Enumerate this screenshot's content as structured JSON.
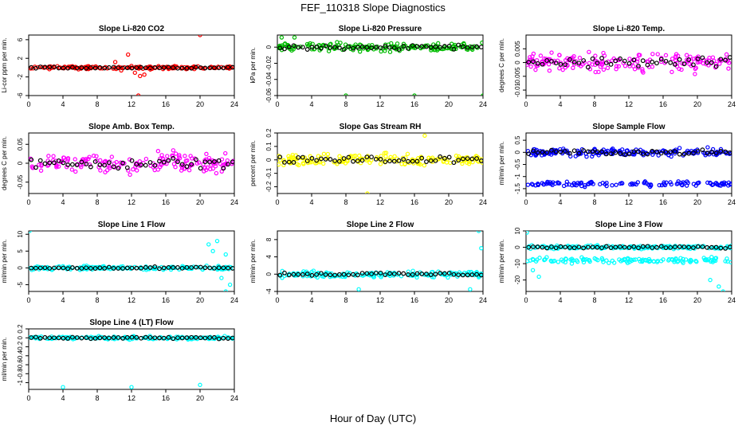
{
  "figure": {
    "title": "FEF_110318  Slope Diagnostics",
    "xlabel": "Hour of Day (UTC)"
  },
  "chart_data": [
    {
      "type": "scatter",
      "title": "Slope Li-820 CO2",
      "ylabel": "Li-cor ppm per min.",
      "xlim": [
        0,
        24
      ],
      "xticks": [
        0,
        4,
        8,
        12,
        16,
        20,
        24
      ],
      "ylim": [
        -6,
        7
      ],
      "yticks": [
        -6,
        -2,
        2,
        6
      ],
      "color": "#ff0000",
      "pattern": "band",
      "center": 0,
      "spread": 0.45,
      "outliers": [
        [
          10.1,
          1.2
        ],
        [
          10.8,
          -0.6
        ],
        [
          11.6,
          2.8
        ],
        [
          12.4,
          -1.1
        ],
        [
          13.0,
          -1.8
        ],
        [
          13.5,
          -1.5
        ],
        [
          14.2,
          -0.4
        ],
        [
          20.0,
          7.0
        ],
        [
          12.8,
          -6.0
        ]
      ]
    },
    {
      "type": "scatter",
      "title": "Slope Li-820 Pressure",
      "ylabel": "kPa per min.",
      "xlim": [
        0,
        24
      ],
      "xticks": [
        0,
        4,
        8,
        12,
        16,
        20,
        24
      ],
      "ylim": [
        -0.06,
        0.015
      ],
      "yticks": [
        -0.06,
        -0.04,
        -0.02,
        0
      ],
      "color": "#00bb00",
      "pattern": "band",
      "center": 0,
      "spread": 0.007,
      "outliers": [
        [
          8.0,
          -0.06
        ],
        [
          16.0,
          -0.06
        ],
        [
          24.0,
          -0.06
        ],
        [
          0.5,
          0.012
        ],
        [
          2.0,
          0.012
        ]
      ]
    },
    {
      "type": "scatter",
      "title": "Slope Li-820 Temp.",
      "ylabel": "degrees C per min.",
      "xlim": [
        0,
        24
      ],
      "xticks": [
        0,
        4,
        8,
        12,
        16,
        20,
        24
      ],
      "ylim": [
        -0.012,
        0.01
      ],
      "yticks": [
        -0.01,
        -0.005,
        0,
        0.005
      ],
      "color": "#ff00ff",
      "pattern": "band",
      "center": 0,
      "spread": 0.005,
      "outliers": []
    },
    {
      "type": "scatter",
      "title": "Slope Amb. Box Temp.",
      "ylabel": "degrees C per min.",
      "xlim": [
        0,
        24
      ],
      "xticks": [
        0,
        4,
        8,
        12,
        16,
        20,
        24
      ],
      "ylim": [
        -0.08,
        0.08
      ],
      "yticks": [
        -0.05,
        0,
        0.05
      ],
      "color": "#ff00ff",
      "pattern": "band",
      "center": 0,
      "spread": 0.04,
      "outliers": []
    },
    {
      "type": "scatter",
      "title": "Slope Gas Stream RH",
      "ylabel": "percent per min.",
      "xlim": [
        0,
        24
      ],
      "xticks": [
        0,
        4,
        8,
        12,
        16,
        20,
        24
      ],
      "ylim": [
        -0.25,
        0.2
      ],
      "yticks": [
        -0.2,
        -0.1,
        0,
        0.1,
        0.2
      ],
      "color": "#ffff00",
      "pattern": "band",
      "center": 0,
      "spread": 0.06,
      "outliers": [
        [
          10.5,
          -0.25
        ],
        [
          17.2,
          0.18
        ]
      ]
    },
    {
      "type": "scatter",
      "title": "Slope Sample Flow",
      "ylabel": "ml/min per min.",
      "xlim": [
        0,
        24
      ],
      "xticks": [
        0,
        4,
        8,
        12,
        16,
        20,
        24
      ],
      "ylim": [
        -1.7,
        0.8
      ],
      "yticks": [
        -1.5,
        -1,
        -0.5,
        0,
        0.5
      ],
      "color": "#0000ff",
      "pattern": "two-band",
      "center": 0,
      "spread": 0.25,
      "center2": -1.3,
      "spread2": 0.15,
      "outliers": []
    },
    {
      "type": "scatter",
      "title": "Slope Line 1 Flow",
      "ylabel": "ml/min per min.",
      "xlim": [
        0,
        24
      ],
      "xticks": [
        0,
        4,
        8,
        12,
        16,
        20,
        24
      ],
      "ylim": [
        -7,
        11
      ],
      "yticks": [
        -5,
        0,
        5,
        10
      ],
      "color": "#00ffff",
      "pattern": "band",
      "center": 0,
      "spread": 0.8,
      "outliers": [
        [
          0.1,
          11
        ],
        [
          21.0,
          7
        ],
        [
          22.0,
          8
        ],
        [
          21.5,
          5
        ],
        [
          23.0,
          4
        ],
        [
          22.5,
          -3
        ],
        [
          23.5,
          -5
        ],
        [
          23.0,
          -7
        ]
      ]
    },
    {
      "type": "scatter",
      "title": "Slope Line 2 Flow",
      "ylabel": "ml/min per min.",
      "xlim": [
        0,
        24
      ],
      "xticks": [
        0,
        4,
        8,
        12,
        16,
        20,
        24
      ],
      "ylim": [
        -4,
        10
      ],
      "yticks": [
        -4,
        0,
        4,
        8
      ],
      "color": "#00ffff",
      "pattern": "band",
      "center": 0,
      "spread": 1.0,
      "outliers": [
        [
          23.5,
          10
        ],
        [
          23.8,
          6
        ],
        [
          22.5,
          -3.5
        ],
        [
          9.5,
          -3.5
        ]
      ]
    },
    {
      "type": "scatter",
      "title": "Slope Line 3 Flow",
      "ylabel": "ml/min per min.",
      "xlim": [
        0,
        24
      ],
      "xticks": [
        0,
        4,
        8,
        12,
        16,
        20,
        24
      ],
      "ylim": [
        -27,
        10
      ],
      "yticks": [
        -20,
        -10,
        0,
        10
      ],
      "color": "#00ffff",
      "pattern": "two-band",
      "center": 0,
      "spread": 1.5,
      "center2": -8,
      "spread2": 2.5,
      "outliers": [
        [
          0.1,
          9
        ],
        [
          21.5,
          -20
        ],
        [
          22.5,
          -24
        ],
        [
          23.0,
          -27
        ],
        [
          0.8,
          -14
        ],
        [
          1.5,
          -18
        ]
      ]
    },
    {
      "type": "scatter",
      "title": "Slope Line 4 (LT) Flow",
      "ylabel": "ml/min per min.",
      "xlim": [
        0,
        24
      ],
      "xticks": [
        0,
        4,
        8,
        12,
        16,
        20,
        24
      ],
      "ylim": [
        -1.15,
        0.2
      ],
      "yticks": [
        -1,
        -0.8,
        -0.6,
        -0.4,
        -0.2,
        0,
        0.2
      ],
      "color": "#00ffff",
      "pattern": "band",
      "center": 0,
      "spread": 0.05,
      "outliers": [
        [
          4.0,
          -1.1
        ],
        [
          12.0,
          -1.1
        ],
        [
          20.0,
          -1.05
        ]
      ]
    }
  ]
}
